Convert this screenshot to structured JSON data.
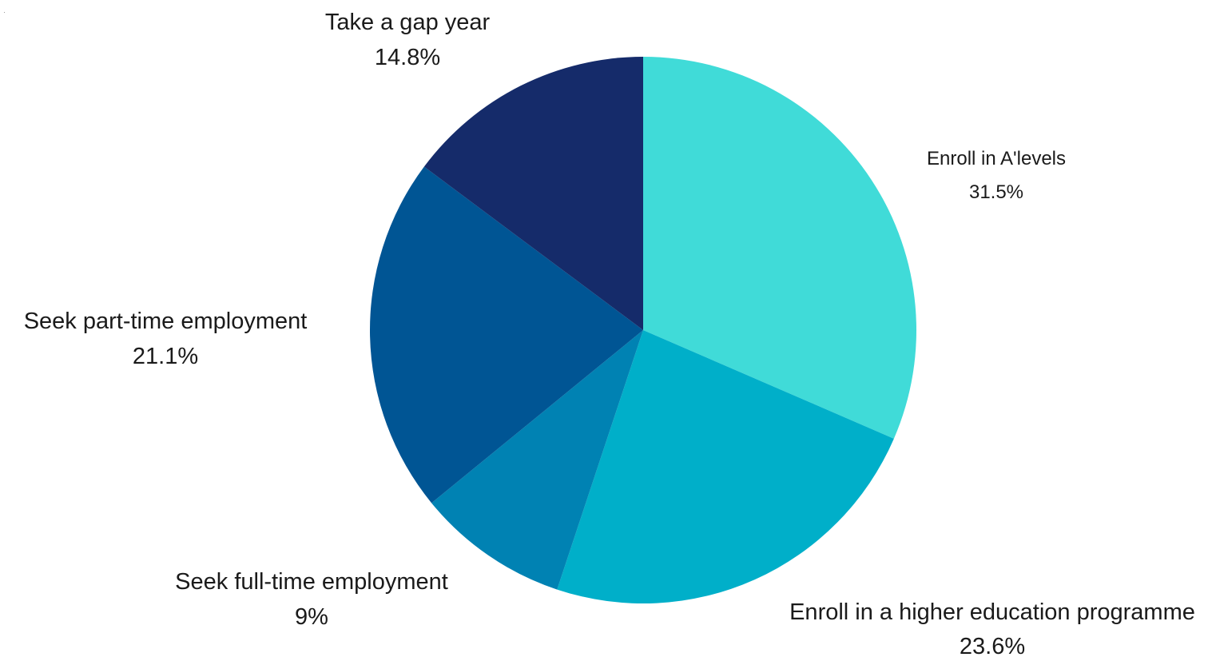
{
  "chart_data": {
    "type": "pie",
    "title": "",
    "start_angle_deg": 0,
    "direction": "clockwise",
    "slices": [
      {
        "label": "Enroll in A'levels",
        "value": 31.5,
        "value_label": "31.5%",
        "color": "#40DBD8"
      },
      {
        "label": "Enroll in a higher education programme",
        "value": 23.6,
        "value_label": "23.6%",
        "color": "#00AFC9"
      },
      {
        "label": "Seek full-time employment",
        "value": 9,
        "value_label": "9%",
        "color": "#0082B3"
      },
      {
        "label": "Seek part-time employment",
        "value": 21.1,
        "value_label": "21.1%",
        "color": "#005594"
      },
      {
        "label": "Take a gap year",
        "value": 14.8,
        "value_label": "14.8%",
        "color": "#152B6A"
      }
    ]
  }
}
